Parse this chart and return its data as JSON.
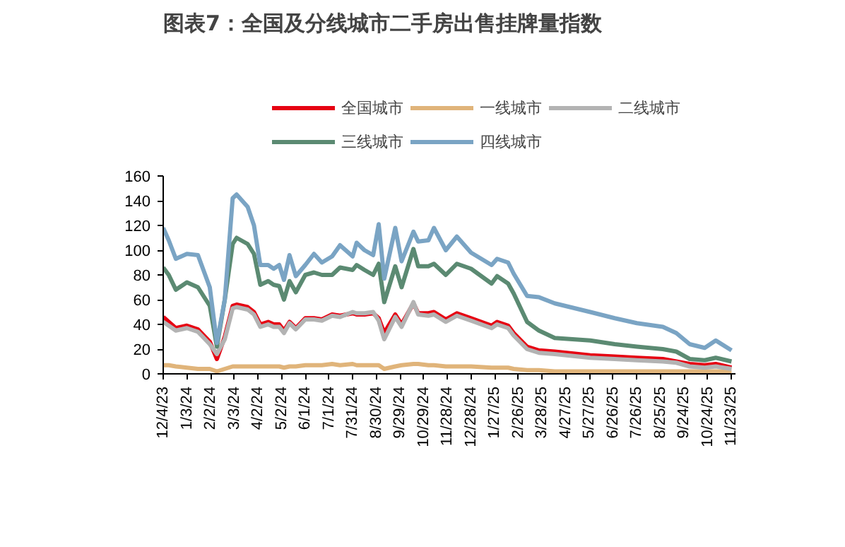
{
  "chart_data": {
    "type": "line",
    "title": "图表7：全国及分线城市二手房出售挂牌量指数",
    "x": [
      "2023-12-04",
      "2023-12-11",
      "2023-12-20",
      "2024-01-03",
      "2024-01-17",
      "2024-02-01",
      "2024-02-10",
      "2024-02-20",
      "2024-03-01",
      "2024-03-06",
      "2024-03-20",
      "2024-03-28",
      "2024-04-05",
      "2024-04-15",
      "2024-04-22",
      "2024-04-29",
      "2024-05-05",
      "2024-05-12",
      "2024-05-20",
      "2024-06-01",
      "2024-06-12",
      "2024-06-22",
      "2024-07-05",
      "2024-07-15",
      "2024-07-31",
      "2024-08-05",
      "2024-08-15",
      "2024-08-26",
      "2024-09-02",
      "2024-09-09",
      "2024-09-23",
      "2024-10-01",
      "2024-10-16",
      "2024-10-22",
      "2024-11-04",
      "2024-11-11",
      "2024-11-26",
      "2024-12-10",
      "2024-12-28",
      "2025-01-23",
      "2025-01-30",
      "2025-02-13",
      "2025-02-20",
      "2025-03-09",
      "2025-03-24",
      "2025-04-13",
      "2025-05-28",
      "2025-06-28",
      "2025-07-26",
      "2025-08-28",
      "2025-09-14",
      "2025-10-01",
      "2025-10-20",
      "2025-11-03",
      "2025-11-23"
    ],
    "series": [
      {
        "name": "全国城市",
        "color": "#e60012",
        "values": [
          46,
          42,
          37,
          39,
          36,
          26,
          12,
          30,
          55,
          56,
          54,
          50,
          40,
          42,
          40,
          40,
          35,
          42,
          37,
          45,
          45,
          44,
          48,
          47,
          49,
          48,
          48,
          49,
          45,
          33,
          48,
          40,
          57,
          49,
          49,
          50,
          44,
          49,
          45,
          39,
          42,
          39,
          33,
          22,
          19,
          18,
          15,
          14,
          13,
          12,
          10,
          8,
          7,
          8,
          5
        ]
      },
      {
        "name": "一线城市",
        "color": "#e0b47a",
        "values": [
          7,
          7,
          6,
          5,
          4,
          4,
          2,
          4,
          6,
          6,
          6,
          6,
          6,
          6,
          6,
          6,
          5,
          6,
          6,
          7,
          7,
          7,
          8,
          7,
          8,
          7,
          7,
          7,
          7,
          4,
          6,
          7,
          8,
          8,
          7,
          7,
          6,
          6,
          6,
          5,
          5,
          5,
          4,
          3,
          3,
          2,
          2,
          2,
          2,
          2,
          2,
          2,
          2,
          2,
          2
        ]
      },
      {
        "name": "二线城市",
        "color": "#b3b3b3",
        "values": [
          42,
          39,
          35,
          37,
          34,
          24,
          16,
          28,
          53,
          54,
          52,
          48,
          38,
          40,
          38,
          38,
          33,
          41,
          36,
          44,
          44,
          43,
          47,
          46,
          50,
          49,
          49,
          50,
          43,
          28,
          46,
          38,
          58,
          48,
          47,
          48,
          42,
          47,
          43,
          37,
          40,
          37,
          31,
          20,
          17,
          16,
          13,
          12,
          11,
          10,
          9,
          6,
          5,
          6,
          4
        ]
      },
      {
        "name": "三线城市",
        "color": "#5b8a72",
        "values": [
          86,
          80,
          68,
          74,
          70,
          55,
          22,
          60,
          105,
          110,
          105,
          97,
          72,
          75,
          72,
          71,
          60,
          75,
          66,
          80,
          82,
          80,
          80,
          86,
          84,
          88,
          84,
          80,
          89,
          58,
          87,
          70,
          101,
          87,
          87,
          89,
          80,
          89,
          85,
          73,
          79,
          73,
          65,
          42,
          35,
          29,
          27,
          24,
          22,
          20,
          18,
          12,
          11,
          13,
          10
        ]
      },
      {
        "name": "四线城市",
        "color": "#7aa4c4",
        "values": [
          118,
          108,
          93,
          97,
          96,
          70,
          25,
          60,
          142,
          145,
          135,
          120,
          88,
          88,
          85,
          88,
          76,
          96,
          79,
          88,
          97,
          90,
          95,
          104,
          95,
          106,
          100,
          96,
          121,
          77,
          118,
          91,
          115,
          107,
          108,
          118,
          100,
          111,
          98,
          88,
          93,
          90,
          81,
          63,
          62,
          57,
          50,
          45,
          41,
          38,
          33,
          24,
          21,
          27,
          19
        ]
      }
    ],
    "xlim": [
      "2023-12-04",
      "2025-11-28"
    ],
    "xticks": [
      {
        "value": "2023-12-04",
        "label": "12/4/23"
      },
      {
        "value": "2024-01-03",
        "label": "1/3/24"
      },
      {
        "value": "2024-02-02",
        "label": "2/2/24"
      },
      {
        "value": "2024-03-03",
        "label": "3/3/24"
      },
      {
        "value": "2024-04-02",
        "label": "4/2/24"
      },
      {
        "value": "2024-05-02",
        "label": "5/2/24"
      },
      {
        "value": "2024-06-01",
        "label": "6/1/24"
      },
      {
        "value": "2024-07-01",
        "label": "7/1/24"
      },
      {
        "value": "2024-07-31",
        "label": "7/31/24"
      },
      {
        "value": "2024-08-30",
        "label": "8/30/24"
      },
      {
        "value": "2024-09-29",
        "label": "9/29/24"
      },
      {
        "value": "2024-10-29",
        "label": "10/29/24"
      },
      {
        "value": "2024-11-28",
        "label": "11/28/24"
      },
      {
        "value": "2024-12-28",
        "label": "12/28/24"
      },
      {
        "value": "2025-01-27",
        "label": "1/27/25"
      },
      {
        "value": "2025-02-26",
        "label": "2/26/25"
      },
      {
        "value": "2025-03-28",
        "label": "3/28/25"
      },
      {
        "value": "2025-04-27",
        "label": "4/27/25"
      },
      {
        "value": "2025-05-27",
        "label": "5/27/25"
      },
      {
        "value": "2025-06-26",
        "label": "6/26/25"
      },
      {
        "value": "2025-07-26",
        "label": "7/26/25"
      },
      {
        "value": "2025-08-25",
        "label": "8/25/25"
      },
      {
        "value": "2025-09-24",
        "label": "9/24/25"
      },
      {
        "value": "2025-10-24",
        "label": "10/24/25"
      },
      {
        "value": "2025-11-23",
        "label": "11/23/25"
      }
    ],
    "ylim": [
      0,
      160
    ],
    "yticks": [
      0,
      20,
      40,
      60,
      80,
      100,
      120,
      140,
      160
    ],
    "grid": false,
    "legend": "top",
    "marker": "none",
    "line_style": "solid"
  }
}
